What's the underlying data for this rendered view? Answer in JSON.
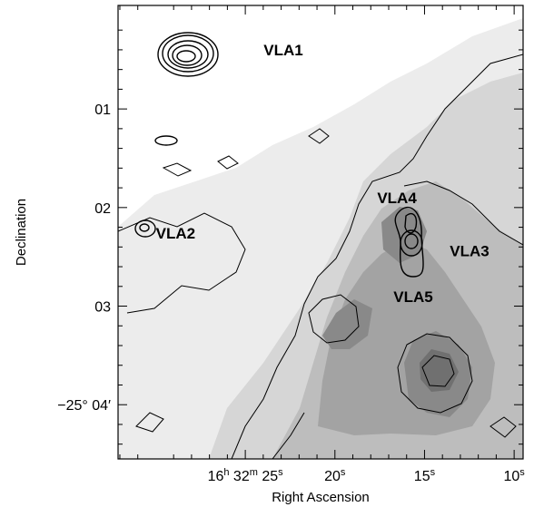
{
  "chart_data": {
    "type": "contour map",
    "xlabel": "Right Ascension",
    "ylabel": "Declination",
    "x_ticks": [
      {
        "id": "x25",
        "label": "16h 32m 25s",
        "ra_sec": 25
      },
      {
        "id": "x20",
        "label": "20s",
        "ra_sec": 20
      },
      {
        "id": "x15",
        "label": "15s",
        "ra_sec": 15
      },
      {
        "id": "x10",
        "label": "10s",
        "ra_sec": 10
      }
    ],
    "y_ticks": [
      {
        "id": "d01",
        "label": "01",
        "dec_arcmin": 1
      },
      {
        "id": "d02",
        "label": "02",
        "dec_arcmin": 2
      },
      {
        "id": "d03",
        "label": "03",
        "dec_arcmin": 3
      },
      {
        "id": "d04",
        "label": "−25° 04′",
        "dec_arcmin": 4
      }
    ],
    "xlim_ra_sec": [
      32.1,
      9.5
    ],
    "ylim_dec_arcmin": [
      -0.05,
      4.55
    ],
    "sources": [
      {
        "id": "VLA1",
        "label": "VLA1",
        "ra_sec": 25.5,
        "dec_arcmin": 0.42
      },
      {
        "id": "VLA2",
        "label": "VLA2",
        "ra_sec": 30.7,
        "dec_arcmin": 2.24
      },
      {
        "id": "VLA3",
        "label": "VLA3",
        "ra_sec": 14.3,
        "dec_arcmin": 2.42
      },
      {
        "id": "VLA4",
        "label": "VLA4",
        "ra_sec": 14.5,
        "dec_arcmin": 2.12
      },
      {
        "id": "VLA5",
        "label": "VLA5",
        "ra_sec": 14.2,
        "dec_arcmin": 2.72
      }
    ],
    "colors": {
      "background": "#ffffff",
      "contour": "#000000",
      "greyscale_dark": "#6e6e6e",
      "greyscale_light": "#f0f0f0"
    },
    "grid": false,
    "legend": "none"
  }
}
